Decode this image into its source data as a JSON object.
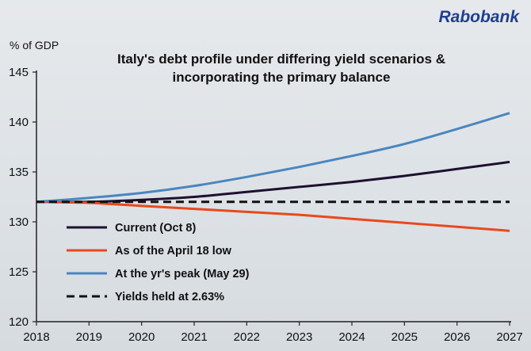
{
  "brand": {
    "name": "Rabobank",
    "color": "#1f3f8f"
  },
  "chart_data": {
    "type": "line",
    "title": "Italy's debt profile under differing yield scenarios &",
    "title_line2": "incorporating the primary balance",
    "ylabel": "% of GDP",
    "xlabel": "",
    "x": [
      2018,
      2019,
      2020,
      2021,
      2022,
      2023,
      2024,
      2025,
      2026,
      2027
    ],
    "xlim": [
      2018,
      2027
    ],
    "ylim": [
      120,
      145
    ],
    "yticks": [
      120,
      125,
      130,
      135,
      140,
      145
    ],
    "grid": false,
    "legend_position": "bottom-left",
    "series": [
      {
        "name": "Current  (Oct 8)",
        "color": "#1e1030",
        "dash": false,
        "values": [
          132.0,
          132.0,
          132.2,
          132.5,
          133.0,
          133.5,
          134.0,
          134.6,
          135.3,
          136.0
        ]
      },
      {
        "name": "As of the April 18 low",
        "color": "#e8491d",
        "dash": false,
        "values": [
          132.0,
          131.9,
          131.6,
          131.3,
          131.0,
          130.7,
          130.3,
          129.9,
          129.5,
          129.1
        ]
      },
      {
        "name": "At the yr's peak (May 29)",
        "color": "#4a86c0",
        "dash": false,
        "values": [
          132.0,
          132.4,
          132.9,
          133.6,
          134.5,
          135.5,
          136.6,
          137.8,
          139.3,
          140.9
        ]
      },
      {
        "name": "Yields held at 2.63%",
        "color": "#111111",
        "dash": true,
        "values": [
          132.0,
          132.0,
          132.0,
          132.0,
          132.0,
          132.0,
          132.0,
          132.0,
          132.0,
          132.0
        ]
      }
    ]
  }
}
